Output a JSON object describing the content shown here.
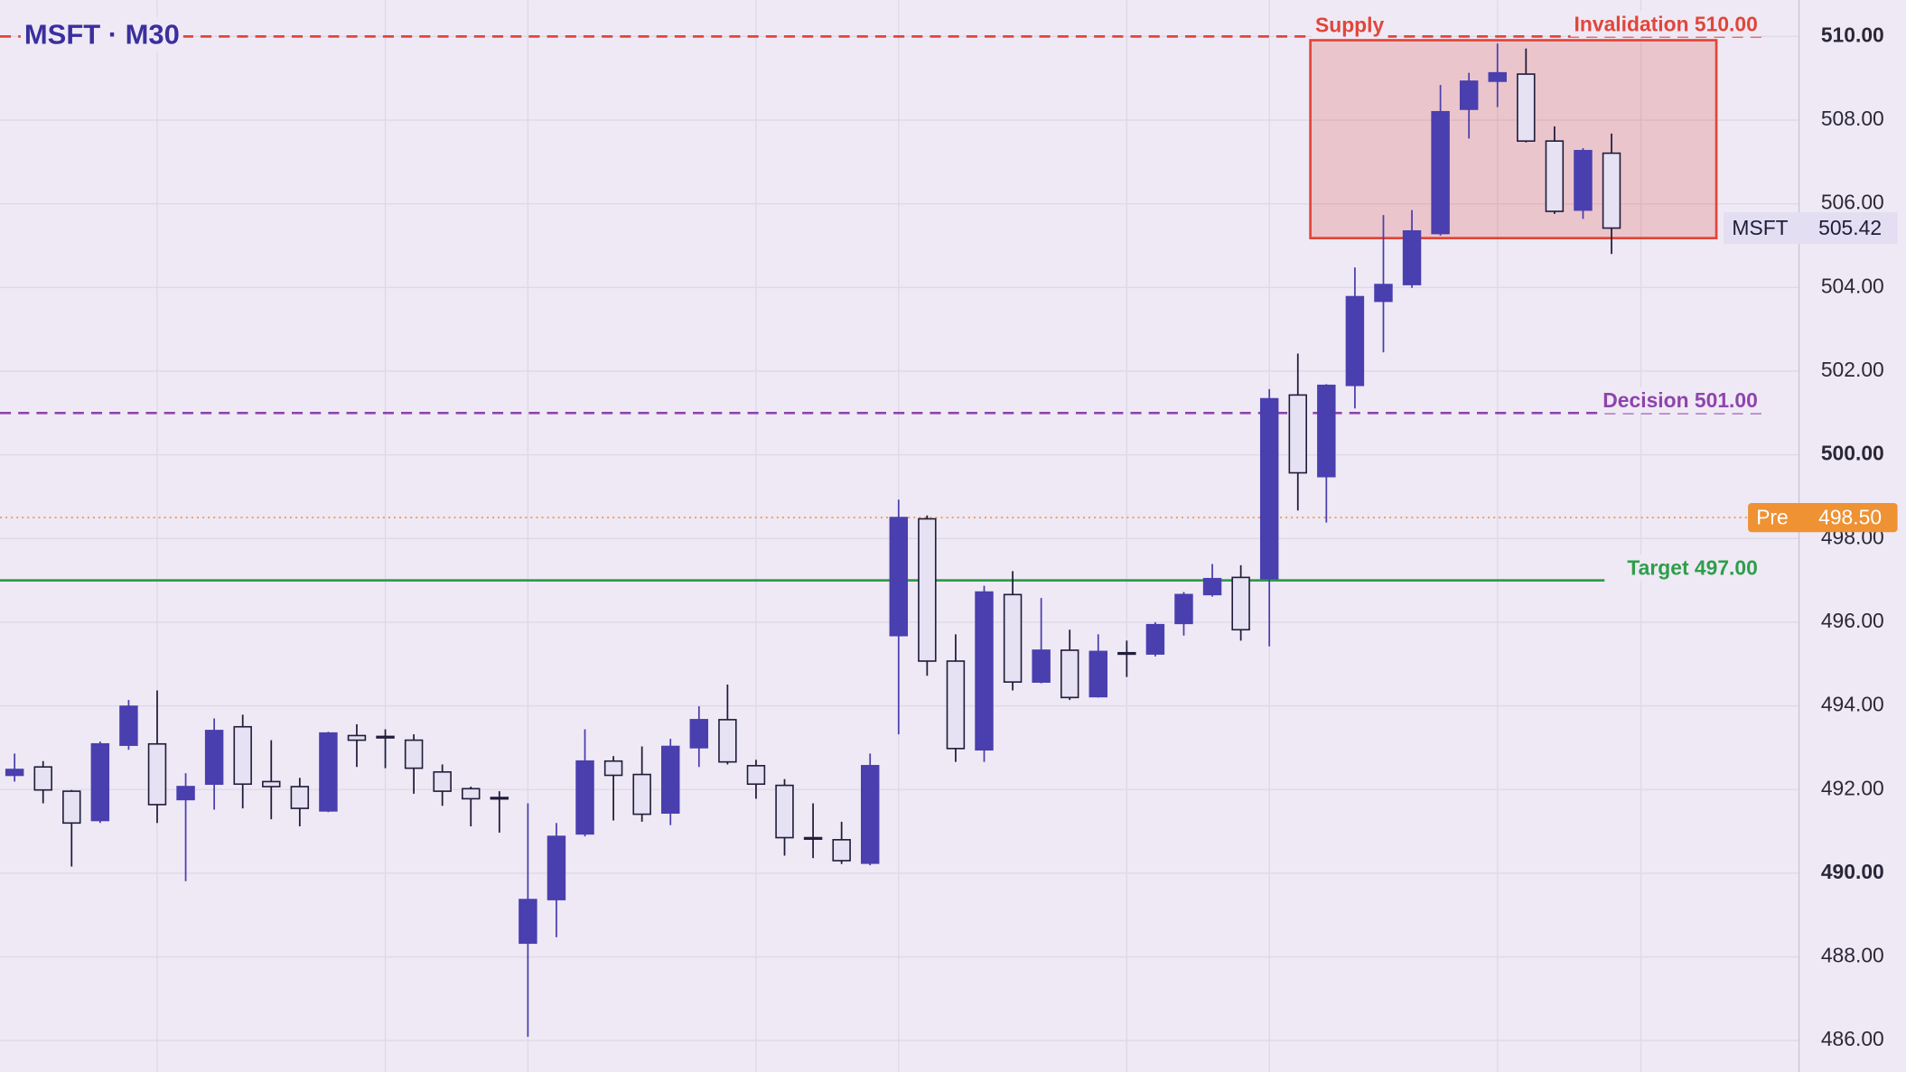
{
  "chart_data": {
    "type": "candlestick",
    "title": "MSFT · M30",
    "candles": {
      "open": [
        492.34,
        492.54,
        491.96,
        491.26,
        493.06,
        493.09,
        491.76,
        492.13,
        493.5,
        492.19,
        492.07,
        491.49,
        493.29,
        493.27,
        493.18,
        492.42,
        492.02,
        491.81,
        488.33,
        489.37,
        490.94,
        492.68,
        492.36,
        491.44,
        493.0,
        493.67,
        492.57,
        492.1,
        490.85,
        490.8,
        490.24,
        495.68,
        498.47,
        495.07,
        492.95,
        496.66,
        494.57,
        495.33,
        494.22,
        495.27,
        495.24,
        495.97,
        496.66,
        497.07,
        497.04,
        501.43,
        499.48,
        501.66,
        503.67,
        504.07,
        505.29,
        508.26,
        508.93,
        509.1,
        507.5,
        505.85,
        507.21
      ],
      "high": [
        492.86,
        492.68,
        491.99,
        493.15,
        494.14,
        494.37,
        492.39,
        493.7,
        493.79,
        493.18,
        492.28,
        493.38,
        493.56,
        493.44,
        493.32,
        492.6,
        492.07,
        491.96,
        491.67,
        491.2,
        493.44,
        492.8,
        493.03,
        493.21,
        493.99,
        494.51,
        492.71,
        492.25,
        491.67,
        491.23,
        492.86,
        498.93,
        498.55,
        495.71,
        496.87,
        497.22,
        496.58,
        495.82,
        495.71,
        495.56,
        496.0,
        496.72,
        497.39,
        497.36,
        501.57,
        502.42,
        501.69,
        504.48,
        505.73,
        505.85,
        508.84,
        509.13,
        509.83,
        509.71,
        507.85,
        507.33,
        507.68
      ],
      "low": [
        492.19,
        491.67,
        490.16,
        491.2,
        492.95,
        491.2,
        489.81,
        491.52,
        491.55,
        491.29,
        491.12,
        491.46,
        492.54,
        492.51,
        491.9,
        491.61,
        491.12,
        490.97,
        486.09,
        488.47,
        490.88,
        491.26,
        491.23,
        491.15,
        492.54,
        492.6,
        491.78,
        490.42,
        490.36,
        490.22,
        490.19,
        493.32,
        494.72,
        492.66,
        492.66,
        494.37,
        494.54,
        494.14,
        494.2,
        494.69,
        495.18,
        495.68,
        496.61,
        495.56,
        495.42,
        498.67,
        498.38,
        501.11,
        502.45,
        503.99,
        505.24,
        507.56,
        508.31,
        507.47,
        505.76,
        505.64,
        504.8
      ],
      "close": [
        492.48,
        491.99,
        491.2,
        493.09,
        493.99,
        491.64,
        492.07,
        493.41,
        492.13,
        492.07,
        491.55,
        493.35,
        493.18,
        493.24,
        492.51,
        491.96,
        491.78,
        491.78,
        489.37,
        490.88,
        492.68,
        492.34,
        491.41,
        493.03,
        493.67,
        492.66,
        492.13,
        490.85,
        490.83,
        490.3,
        492.57,
        498.5,
        495.07,
        492.98,
        496.72,
        494.57,
        495.33,
        494.2,
        495.3,
        495.24,
        495.94,
        496.66,
        497.04,
        495.82,
        501.34,
        499.57,
        501.66,
        503.78,
        504.07,
        505.35,
        508.2,
        508.93,
        509.13,
        507.5,
        505.82,
        507.27,
        505.42
      ]
    },
    "up_color": "#4a3fae",
    "down_color": "#e6e2f3",
    "ylim": [
      485.25,
      510.87
    ],
    "yticks": [
      {
        "value": 486,
        "label": "486.00"
      },
      {
        "value": 488,
        "label": "488.00"
      },
      {
        "value": 490,
        "label": "490.00"
      },
      {
        "value": 492,
        "label": "492.00"
      },
      {
        "value": 494,
        "label": "494.00"
      },
      {
        "value": 496,
        "label": "496.00"
      },
      {
        "value": 498,
        "label": "498.00"
      },
      {
        "value": 500,
        "label": "500.00"
      },
      {
        "value": 502,
        "label": "502.00"
      },
      {
        "value": 504,
        "label": "504.00"
      },
      {
        "value": 506,
        "label": "506.00"
      },
      {
        "value": 508,
        "label": "508.00"
      },
      {
        "value": 510,
        "label": "510.00"
      }
    ],
    "grid": true,
    "zone": {
      "label": "Supply",
      "low": 505.18,
      "high": 509.91,
      "color": "#e0463a"
    },
    "levels": [
      {
        "label": "Invalidation 510.00",
        "value": 510,
        "color": "#e0463a",
        "style": "dashed"
      },
      {
        "label": "Decision 501.00",
        "value": 501,
        "color": "#8e44ad",
        "style": "dashed"
      },
      {
        "label": "Target 497.00",
        "value": 497,
        "color": "#2e9e4a",
        "style": "solid"
      }
    ],
    "premarket": {
      "name": "Pre",
      "value": 498.5,
      "label": "498.50",
      "color": "#ee9234"
    },
    "last_price": {
      "name": "MSFT",
      "value": 505.42
    }
  }
}
